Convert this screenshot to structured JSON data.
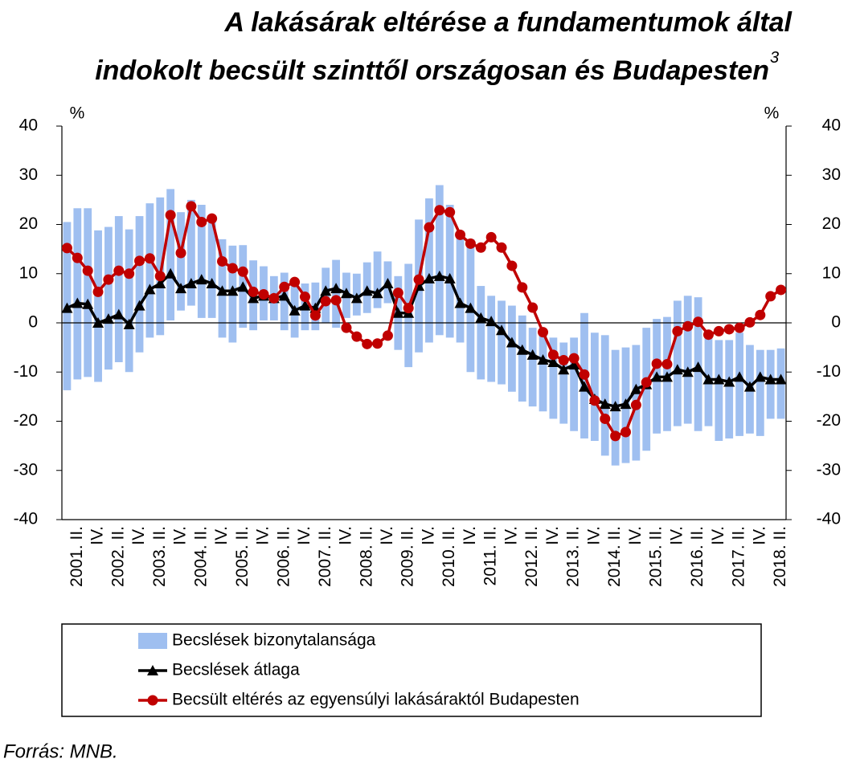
{
  "chart_data": {
    "type": "range-bar-line",
    "title": [
      "A lakásárak eltérése a fundamentumok által",
      "indokolt becsült szinttől országosan és Budapesten"
    ],
    "title_note": "3",
    "y_unit": "%",
    "y2_unit": "%",
    "source": "Forrás: MNB.",
    "categories": [
      null,
      "2001. II.",
      null,
      "IV.",
      null,
      "2002. II.",
      null,
      "IV.",
      null,
      "2003. II.",
      null,
      "IV.",
      null,
      "2004. II.",
      null,
      "IV.",
      null,
      "2005. II.",
      null,
      "IV.",
      null,
      "2006. II.",
      null,
      "IV.",
      null,
      "2007. II.",
      null,
      "IV.",
      null,
      "2008. II.",
      null,
      "IV.",
      null,
      "2009. II.",
      null,
      "IV.",
      null,
      "2010. II.",
      null,
      "IV.",
      null,
      "2011. II.",
      null,
      "IV.",
      null,
      "2012. II.",
      null,
      "IV.",
      null,
      "2013. II.",
      null,
      "IV.",
      null,
      "2014. II.",
      null,
      "IV.",
      null,
      "2015. II.",
      null,
      "IV.",
      null,
      "2016. II.",
      null,
      "IV.",
      null,
      "2017. II.",
      null,
      "IV.",
      null,
      "2018. II."
    ],
    "ylim": [
      -40,
      40
    ],
    "yticks": [
      -40,
      -30,
      -20,
      -10,
      0,
      10,
      20,
      30,
      40
    ],
    "y2lim": [
      -40,
      40
    ],
    "y2ticks": [
      -40,
      -30,
      -20,
      -10,
      0,
      10,
      20,
      30,
      40
    ],
    "series": [
      {
        "name": "Becslések bizonytalansága",
        "type": "range-bar",
        "color": "#9fbff0",
        "low": [
          -13.7,
          -11.5,
          -11.0,
          -12.0,
          -9.5,
          -8.0,
          -10.0,
          -6.0,
          -3.0,
          -2.5,
          0.5,
          2.5,
          3.5,
          1.0,
          1.0,
          -3.0,
          -4.0,
          -1.0,
          -1.5,
          0.5,
          0.5,
          -1.5,
          -3.0,
          -1.5,
          -1.5,
          0.0,
          -1.0,
          1.0,
          1.5,
          2.0,
          3.0,
          4.0,
          -5.5,
          -9.0,
          -6.0,
          -4.0,
          -2.5,
          -3.0,
          -4.0,
          -10.0,
          -11.5,
          -12.0,
          -12.5,
          -14.0,
          -16.0,
          -17.0,
          -18.0,
          -19.5,
          -20.5,
          -22.0,
          -23.5,
          -24.0,
          -27.0,
          -29.0,
          -28.5,
          -28.0,
          -26.0,
          -22.5,
          -22.0,
          -21.0,
          -20.5,
          -22.0,
          -21.0,
          -24.0,
          -23.5,
          -23.0,
          -22.5,
          -23.0,
          -19.5,
          -19.5
        ],
        "high": [
          20.5,
          23.3,
          23.3,
          18.8,
          19.5,
          21.7,
          19.0,
          21.7,
          24.3,
          25.5,
          27.2,
          22.5,
          25.0,
          24.0,
          21.0,
          17.0,
          15.7,
          15.8,
          12.7,
          11.5,
          9.5,
          10.2,
          8.5,
          8.0,
          8.2,
          11.2,
          12.8,
          10.2,
          10.0,
          12.3,
          14.5,
          12.5,
          9.5,
          12.0,
          21.0,
          25.3,
          28.0,
          24.0,
          18.7,
          17.0,
          7.5,
          5.5,
          4.5,
          3.5,
          1.5,
          -1.0,
          -2.0,
          -3.0,
          -4.0,
          -3.0,
          2.0,
          -2.0,
          -2.5,
          -5.5,
          -5.0,
          -4.5,
          -1.0,
          0.8,
          1.2,
          4.5,
          5.5,
          5.2,
          -3.0,
          -3.5,
          -3.5,
          -2.0,
          -4.5,
          -5.5,
          -5.5,
          -5.2
        ]
      },
      {
        "name": "Becslések átlaga",
        "type": "line",
        "marker": "triangle",
        "color": "#000000",
        "values": [
          3,
          4,
          3.8,
          0,
          0.8,
          1.7,
          -0.3,
          3.5,
          6.8,
          8.0,
          10.0,
          7.0,
          8.0,
          8.8,
          8.0,
          6.5,
          6.5,
          7.3,
          5.0,
          5.5,
          5.0,
          5.5,
          2.5,
          3.5,
          3.0,
          6.5,
          7.0,
          6.0,
          5.0,
          6.5,
          6.0,
          8.0,
          2.0,
          2.0,
          7.5,
          9.0,
          9.5,
          9.0,
          4.0,
          3.0,
          1.0,
          0.3,
          -1.5,
          -4.0,
          -5.5,
          -6.5,
          -7.5,
          -8.0,
          -9.5,
          -8.5,
          -13.0,
          -15.5,
          -16.5,
          -17.0,
          -16.5,
          -13.5,
          -12.5,
          -11.0,
          -11.0,
          -9.5,
          -10.0,
          -9.0,
          -11.5,
          -11.5,
          -12.0,
          -11.0,
          -13.0,
          -11.0,
          -11.5,
          -11.5
        ]
      },
      {
        "name": "Becsült eltérés az egyensúlyi lakásáraktól Budapesten",
        "type": "line",
        "marker": "circle",
        "color": "#c00000",
        "values": [
          15.2,
          13.2,
          10.6,
          6.3,
          8.8,
          10.6,
          10.0,
          12.6,
          13.1,
          9.5,
          21.9,
          14.2,
          23.7,
          20.5,
          21.2,
          12.5,
          11.1,
          10.4,
          6.3,
          5.8,
          5.0,
          7.3,
          8.3,
          5.3,
          1.5,
          4.4,
          4.6,
          -1.0,
          -2.8,
          -4.3,
          -4.2,
          -2.6,
          6.1,
          3.0,
          8.8,
          19.4,
          22.9,
          22.5,
          17.9,
          16.1,
          15.3,
          17.4,
          15.3,
          11.6,
          7.2,
          3.1,
          -1.9,
          -6.5,
          -7.6,
          -7.2,
          -10.5,
          -15.8,
          -19.5,
          -23.0,
          -22.2,
          -16.7,
          -12.1,
          -8.3,
          -8.4,
          -1.7,
          -0.7,
          0.2,
          -2.4,
          -1.7,
          -1.3,
          -1.0,
          0.1,
          1.6,
          5.4,
          6.7
        ]
      }
    ]
  }
}
